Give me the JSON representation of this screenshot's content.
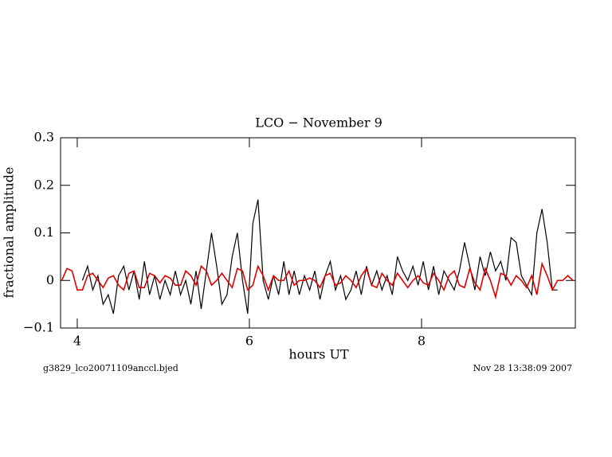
{
  "chart_data": {
    "type": "line",
    "title": "LCO − November 9",
    "xlabel": "hours UT",
    "ylabel": "fractional amplitude",
    "footer_left": "g3829_lco20071109anccl.bjed",
    "footer_right": "Nov 28 13:38:09 2007",
    "xlim": [
      3.806,
      9.787
    ],
    "ylim": [
      -0.1,
      0.3
    ],
    "xticks": [
      4,
      6,
      8
    ],
    "yticks": [
      0.3,
      0.2,
      0.1,
      0,
      {
        "value": -0.1,
        "label": "−0.1"
      }
    ],
    "x": [
      3.82,
      3.88,
      3.94,
      4.0,
      4.06,
      4.12,
      4.18,
      4.24,
      4.3,
      4.36,
      4.42,
      4.48,
      4.54,
      4.6,
      4.66,
      4.72,
      4.78,
      4.84,
      4.9,
      4.96,
      5.02,
      5.08,
      5.14,
      5.2,
      5.26,
      5.32,
      5.38,
      5.44,
      5.5,
      5.56,
      5.62,
      5.68,
      5.74,
      5.8,
      5.86,
      5.92,
      5.98,
      6.04,
      6.1,
      6.16,
      6.22,
      6.28,
      6.34,
      6.4,
      6.46,
      6.52,
      6.58,
      6.64,
      6.7,
      6.76,
      6.82,
      6.88,
      6.94,
      7.0,
      7.06,
      7.12,
      7.18,
      7.24,
      7.3,
      7.36,
      7.42,
      7.48,
      7.54,
      7.6,
      7.66,
      7.72,
      7.78,
      7.84,
      7.9,
      7.96,
      8.02,
      8.08,
      8.14,
      8.2,
      8.26,
      8.32,
      8.38,
      8.44,
      8.5,
      8.56,
      8.62,
      8.68,
      8.74,
      8.8,
      8.86,
      8.92,
      8.98,
      9.04,
      9.1,
      9.16,
      9.22,
      9.28,
      9.34,
      9.4,
      9.46,
      9.52,
      9.58,
      9.64,
      9.7,
      9.76
    ],
    "series": [
      {
        "color": "#000000",
        "values": [
          null,
          null,
          null,
          null,
          0.0,
          0.03,
          -0.02,
          0.01,
          -0.05,
          -0.03,
          -0.07,
          0.01,
          0.03,
          -0.02,
          0.02,
          -0.04,
          0.04,
          -0.03,
          0.01,
          -0.04,
          0.0,
          -0.03,
          0.02,
          -0.03,
          0.0,
          -0.05,
          0.02,
          -0.06,
          0.02,
          0.1,
          0.03,
          -0.05,
          -0.03,
          0.05,
          0.1,
          0.0,
          -0.07,
          0.12,
          0.17,
          0.0,
          -0.04,
          0.01,
          -0.03,
          0.04,
          -0.03,
          0.02,
          -0.03,
          0.01,
          -0.02,
          0.02,
          -0.04,
          0.01,
          0.04,
          -0.02,
          0.01,
          -0.04,
          -0.02,
          0.02,
          -0.03,
          0.03,
          -0.01,
          0.02,
          -0.02,
          0.01,
          -0.03,
          0.05,
          0.02,
          0.0,
          0.03,
          -0.01,
          0.04,
          -0.02,
          0.03,
          -0.03,
          0.02,
          0.0,
          -0.02,
          0.02,
          0.08,
          0.03,
          -0.02,
          0.05,
          0.01,
          0.06,
          0.02,
          0.04,
          0.0,
          0.09,
          0.08,
          0.01,
          -0.01,
          -0.03,
          0.1,
          0.15,
          0.08,
          -0.02,
          -0.02,
          null,
          null,
          null
        ]
      },
      {
        "color": "#e00000",
        "values": [
          0.0,
          0.025,
          0.02,
          -0.02,
          -0.02,
          0.01,
          0.015,
          0.0,
          -0.015,
          0.005,
          0.01,
          -0.01,
          -0.02,
          0.015,
          0.02,
          -0.015,
          -0.015,
          0.015,
          0.01,
          -0.005,
          0.01,
          0.005,
          -0.01,
          -0.01,
          0.02,
          0.01,
          -0.01,
          0.03,
          0.02,
          -0.01,
          0.0,
          0.015,
          0.0,
          -0.015,
          0.025,
          0.02,
          -0.02,
          -0.01,
          0.03,
          0.01,
          -0.02,
          0.01,
          0.0,
          0.0,
          0.02,
          -0.01,
          0.0,
          0.0,
          0.005,
          0.0,
          -0.015,
          0.01,
          0.015,
          -0.01,
          -0.005,
          0.01,
          0.0,
          -0.015,
          0.01,
          0.025,
          -0.01,
          -0.015,
          0.015,
          0.0,
          -0.01,
          0.015,
          0.0,
          -0.015,
          0.0,
          0.01,
          -0.005,
          -0.01,
          0.015,
          0.0,
          -0.02,
          0.01,
          0.02,
          -0.01,
          -0.015,
          0.025,
          -0.005,
          -0.02,
          0.025,
          0.0,
          -0.035,
          0.015,
          0.01,
          -0.01,
          0.01,
          0.0,
          -0.015,
          0.01,
          -0.03,
          0.035,
          0.01,
          -0.02,
          0.0,
          0.0,
          0.01,
          0.0
        ]
      }
    ]
  }
}
